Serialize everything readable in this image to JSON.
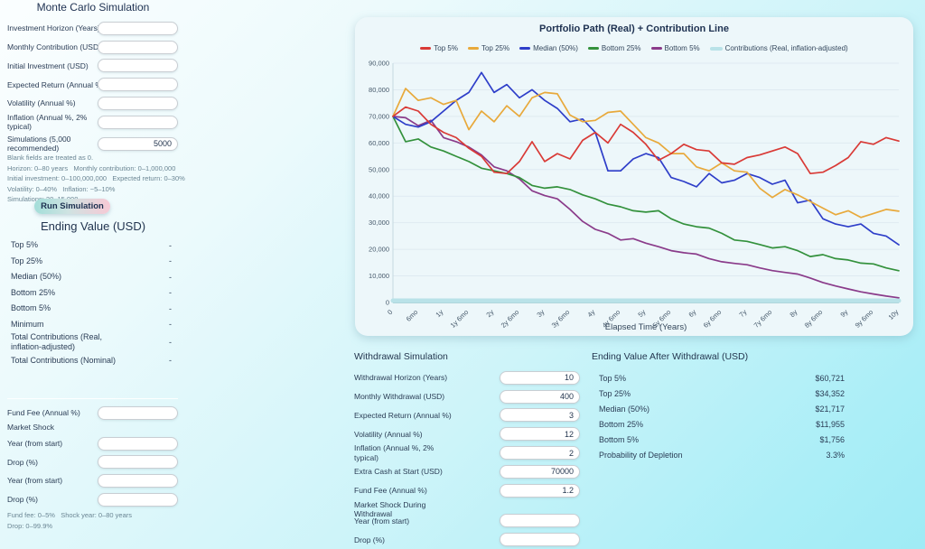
{
  "left_panel": {
    "title": "Monte Carlo Simulation",
    "fields": [
      {
        "name": "investment-horizon",
        "label": "Investment Horizon (Years)",
        "value": ""
      },
      {
        "name": "monthly-contribution",
        "label": "Monthly Contribution (USD)",
        "value": ""
      },
      {
        "name": "initial-investment",
        "label": "Initial Investment (USD)",
        "value": ""
      },
      {
        "name": "expected-return",
        "label": "Expected Return (Annual %)",
        "value": ""
      },
      {
        "name": "volatility",
        "label": "Volatility (Annual %)",
        "value": ""
      },
      {
        "name": "inflation",
        "label": "Inflation (Annual %, 2% typical)",
        "value": ""
      },
      {
        "name": "simulations",
        "label": "Simulations (5,000 recommended)",
        "value": "5000"
      }
    ],
    "hints": [
      "Blank fields are treated as 0.",
      "Horizon: 0–80 years   Monthly contribution: 0–1,000,000",
      "Initial investment: 0–100,000,000   Expected return: 0–30%",
      "Volatility: 0–40%   Inflation: −5–10%",
      "Simulations: 20–15,000"
    ],
    "run_button_label": "Run Simulation",
    "results_heading": "Ending Value (USD)",
    "results": [
      {
        "label": "Top 5%",
        "value": "-"
      },
      {
        "label": "Top 25%",
        "value": "-"
      },
      {
        "label": "Median (50%)",
        "value": "-"
      },
      {
        "label": "Bottom 25%",
        "value": "-"
      },
      {
        "label": "Bottom 5%",
        "value": "-"
      },
      {
        "label": "Minimum",
        "value": "-"
      },
      {
        "label": "Total Contributions (Real, inflation-adjusted)",
        "value": "-"
      },
      {
        "label": "Total Contributions (Nominal)",
        "value": "-"
      }
    ],
    "fee_shock": {
      "shock_heading": "Market Shock",
      "fund_fee": {
        "name": "fund-fee",
        "label": "Fund Fee (Annual %)",
        "value": ""
      },
      "shock_fields": [
        {
          "name": "shock-year-1",
          "label": "Year (from start)",
          "value": ""
        },
        {
          "name": "shock-drop-1",
          "label": "Drop (%)",
          "value": ""
        },
        {
          "name": "shock-year-2",
          "label": "Year (from start)",
          "value": ""
        },
        {
          "name": "shock-drop-2",
          "label": "Drop (%)",
          "value": ""
        }
      ],
      "hints": [
        "Fund fee: 0–5%   Shock year: 0–80 years",
        "Drop: 0–99.9%"
      ]
    }
  },
  "withdrawal": {
    "heading": "Withdrawal Simulation",
    "fields": [
      {
        "name": "withdrawal-horizon",
        "label": "Withdrawal Horizon (Years)",
        "value": "10"
      },
      {
        "name": "monthly-withdrawal",
        "label": "Monthly Withdrawal (USD)",
        "value": "400"
      },
      {
        "name": "wd-expected-return",
        "label": "Expected Return (Annual %)",
        "value": "3"
      },
      {
        "name": "wd-volatility",
        "label": "Volatility (Annual %)",
        "value": "12"
      },
      {
        "name": "wd-inflation",
        "label": "Inflation (Annual %, 2% typical)",
        "value": "2"
      },
      {
        "name": "extra-cash-at-start",
        "label": "Extra Cash at Start (USD)",
        "value": "70000"
      },
      {
        "name": "wd-fund-fee",
        "label": "Fund Fee (Annual %)",
        "value": "1.2"
      }
    ],
    "shock_heading": "Market Shock During Withdrawal",
    "shock_fields": [
      {
        "name": "wd-shock-year",
        "label": "Year (from start)",
        "value": ""
      },
      {
        "name": "wd-shock-drop",
        "label": "Drop (%)",
        "value": ""
      }
    ]
  },
  "after_withdrawal": {
    "heading": "Ending Value After Withdrawal (USD)",
    "rows": [
      {
        "label": "Top 5%",
        "value": "$60,721"
      },
      {
        "label": "Top 25%",
        "value": "$34,352"
      },
      {
        "label": "Median (50%)",
        "value": "$21,717"
      },
      {
        "label": "Bottom 25%",
        "value": "$11,955"
      },
      {
        "label": "Bottom 5%",
        "value": "$1,756"
      },
      {
        "label": "Probability of Depletion",
        "value": "3.3%"
      }
    ]
  },
  "chart_data": {
    "type": "line",
    "title": "Portfolio Path (Real) + Contribution Line",
    "xlabel": "Elapsed Time (Years)",
    "ylabel": "",
    "xlim": [
      0,
      10
    ],
    "ylim": [
      0,
      90000
    ],
    "grid": true,
    "legend_position": "top",
    "x_tick_labels": [
      "0",
      "6mo",
      "1y",
      "1y 6mo",
      "2y",
      "2y 6mo",
      "3y",
      "3y 6mo",
      "4y",
      "4y 6mo",
      "5y",
      "5y 6mo",
      "6y",
      "6y 6mo",
      "7y",
      "7y 6mo",
      "8y",
      "8y 6mo",
      "9y",
      "9y 6mo",
      "10y"
    ],
    "y_ticks": [
      0,
      10000,
      20000,
      30000,
      40000,
      50000,
      60000,
      70000,
      80000,
      90000
    ],
    "y_tick_labels": [
      "0",
      "10,000",
      "20,000",
      "30,000",
      "40,000",
      "50,000",
      "60,000",
      "70,000",
      "80,000",
      "90,000"
    ],
    "x": [
      0,
      0.25,
      0.5,
      0.75,
      1,
      1.25,
      1.5,
      1.75,
      2,
      2.25,
      2.5,
      2.75,
      3,
      3.25,
      3.5,
      3.75,
      4,
      4.25,
      4.5,
      4.75,
      5,
      5.25,
      5.5,
      5.75,
      6,
      6.25,
      6.5,
      6.75,
      7,
      7.25,
      7.5,
      7.75,
      8,
      8.25,
      8.5,
      8.75,
      9,
      9.25,
      9.5,
      9.75,
      10
    ],
    "series": [
      {
        "name": "Top 5%",
        "color": "#d93a36",
        "line_width": 1.7,
        "values": [
          70000,
          73500,
          72000,
          67000,
          64000,
          62000,
          58000,
          55000,
          49000,
          48500,
          53000,
          60500,
          53000,
          56000,
          54000,
          61000,
          64000,
          60000,
          67000,
          64000,
          59500,
          53500,
          56000,
          59500,
          57500,
          57000,
          52500,
          52000,
          54500,
          55500,
          57000,
          58500,
          56000,
          48500,
          49000,
          51500,
          54500,
          60500,
          59500,
          62000,
          60721
        ]
      },
      {
        "name": "Top 25%",
        "color": "#e8a93b",
        "line_width": 1.7,
        "values": [
          70000,
          80500,
          76000,
          77000,
          74500,
          76000,
          65000,
          72000,
          68000,
          74000,
          70000,
          77000,
          79000,
          78500,
          70500,
          68000,
          68500,
          71500,
          72000,
          67000,
          62000,
          60000,
          56000,
          56000,
          51000,
          49500,
          52500,
          49500,
          49000,
          43000,
          39500,
          42500,
          40500,
          38000,
          35500,
          33000,
          34500,
          32000,
          33500,
          35000,
          34352
        ]
      },
      {
        "name": "Median (50%)",
        "color": "#2e3ec9",
        "line_width": 1.7,
        "values": [
          70000,
          67000,
          66000,
          68000,
          72000,
          76000,
          79000,
          86500,
          79000,
          82000,
          77000,
          80000,
          76000,
          73000,
          68000,
          69000,
          64000,
          49500,
          49500,
          54000,
          56000,
          54500,
          47000,
          45500,
          43500,
          48500,
          45000,
          46000,
          48500,
          47000,
          44500,
          46000,
          37500,
          38500,
          31500,
          29500,
          28500,
          29500,
          26000,
          25000,
          21717
        ]
      },
      {
        "name": "Bottom 25%",
        "color": "#33913c",
        "line_width": 1.7,
        "values": [
          70000,
          60500,
          61500,
          58500,
          57000,
          55000,
          53000,
          50500,
          49500,
          48500,
          47000,
          44000,
          43000,
          43500,
          42500,
          40500,
          39000,
          37000,
          36000,
          34500,
          34000,
          34500,
          31500,
          29500,
          28500,
          28000,
          26000,
          23500,
          23000,
          21800,
          20500,
          21000,
          19500,
          17300,
          18000,
          16500,
          16000,
          14800,
          14500,
          13000,
          11955
        ]
      },
      {
        "name": "Bottom 5%",
        "color": "#8a3b8a",
        "line_width": 1.7,
        "values": [
          70000,
          69500,
          66500,
          68500,
          62000,
          60500,
          58500,
          55500,
          51000,
          49500,
          46500,
          42000,
          40200,
          39000,
          35000,
          30500,
          27500,
          26000,
          23500,
          24000,
          22300,
          21000,
          19500,
          18700,
          18200,
          16500,
          15300,
          14700,
          14200,
          13000,
          12000,
          11300,
          10700,
          9200,
          7500,
          6200,
          5100,
          4000,
          3200,
          2400,
          1756
        ]
      },
      {
        "name": "Contributions (Real, inflation-adjusted)",
        "color": "#b9e2e8",
        "line_width": 5,
        "values": [
          0,
          0,
          0,
          0,
          0,
          0,
          0,
          0,
          0,
          0,
          0,
          0,
          0,
          0,
          0,
          0,
          0,
          0,
          0,
          0,
          0,
          0,
          0,
          0,
          0,
          0,
          0,
          0,
          0,
          0,
          0,
          0,
          0,
          0,
          0,
          0,
          0,
          0,
          0,
          0,
          0
        ]
      }
    ]
  }
}
